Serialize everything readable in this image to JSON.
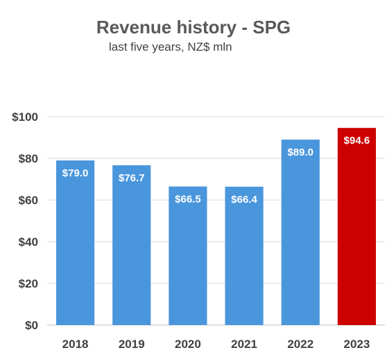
{
  "chart_data": {
    "type": "bar",
    "title": "Revenue history - SPG",
    "subtitle": "last five years, NZ$ mln",
    "categories": [
      "2018",
      "2019",
      "2020",
      "2021",
      "2022",
      "2023"
    ],
    "values": [
      79.0,
      76.7,
      66.5,
      66.4,
      89.0,
      94.6
    ],
    "data_labels": [
      "$79.0",
      "$76.7",
      "$66.5",
      "$66.4",
      "$89.0",
      "$94.6"
    ],
    "y_ticks": [
      "$0",
      "$20",
      "$40",
      "$60",
      "$80",
      "$100"
    ],
    "ylim": [
      0,
      100
    ],
    "xlabel": "",
    "ylabel": "",
    "grid": true,
    "legend": "none",
    "colors": {
      "default": "#4a96dc",
      "highlight": "#cc0000",
      "grid": "#d9d9d9",
      "text": "#404040"
    },
    "highlight_index": 5
  }
}
